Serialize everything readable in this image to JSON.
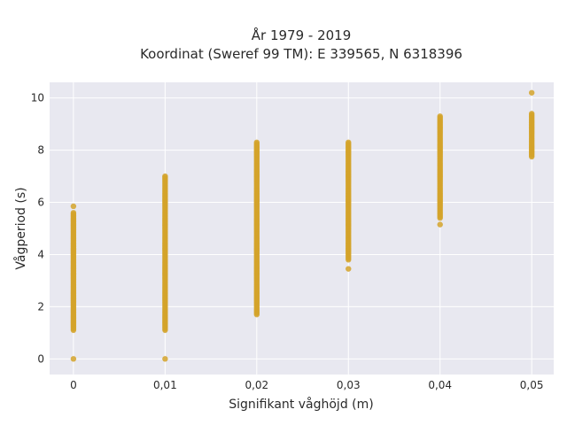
{
  "chart_data": {
    "type": "scatter",
    "title": "År 1979 - 2019",
    "subtitle": "Koordinat (Sweref 99 TM): E 339565, N 6318396",
    "xlabel": "Signifikant våghöjd (m)",
    "ylabel": "Vågperiod (s)",
    "xlim": [
      -0.0026,
      0.0524
    ],
    "ylim": [
      -0.6,
      10.6
    ],
    "x_ticks": [
      0,
      0.01,
      0.02,
      0.03,
      0.04,
      0.05
    ],
    "x_tick_labels": [
      "0",
      "0,01",
      "0,02",
      "0,03",
      "0,04",
      "0,05"
    ],
    "y_ticks": [
      0,
      2,
      4,
      6,
      8,
      10
    ],
    "y_tick_labels": [
      "0",
      "2",
      "4",
      "6",
      "8",
      "10"
    ],
    "grid": true,
    "marker_color": "#d4a32a",
    "plot_background": "#e8e8f0",
    "series": [
      {
        "groups": [
          {
            "x": 0.0,
            "y_range": [
              1.1,
              5.6
            ],
            "extra_y": [
              0,
              5.85
            ]
          },
          {
            "x": 0.01,
            "y_range": [
              1.1,
              7.0
            ],
            "extra_y": [
              0
            ]
          },
          {
            "x": 0.02,
            "y_range": [
              1.7,
              8.3
            ],
            "extra_y": []
          },
          {
            "x": 0.03,
            "y_range": [
              3.8,
              8.3
            ],
            "extra_y": [
              3.45
            ]
          },
          {
            "x": 0.04,
            "y_range": [
              5.4,
              9.3
            ],
            "extra_y": [
              5.15
            ]
          },
          {
            "x": 0.05,
            "y_range": [
              7.8,
              9.4
            ],
            "extra_y": [
              10.2,
              7.75
            ]
          }
        ]
      }
    ]
  }
}
